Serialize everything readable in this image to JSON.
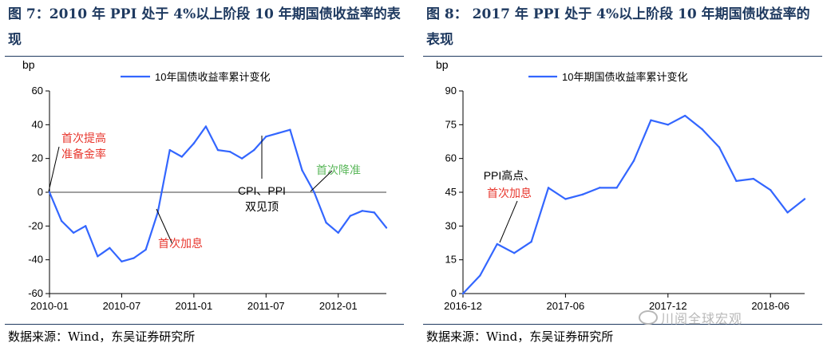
{
  "charts": [
    {
      "title": "图 7：2010 年 PPI 处于 4%以上阶段 10 年期国债收益率的表现",
      "source": "数据来源：Wind，东吴证券研究所"
    },
    {
      "title": "图 8：  2017 年 PPI 处于 4%以上阶段 10 年期国债收益率的表现",
      "source": "数据来源：Wind，东吴证券研究所"
    }
  ],
  "watermark": "川阅全球宏观",
  "chart_data": [
    {
      "type": "line",
      "title": "图 7：2010 年 PPI 处于 4%以上阶段 10 年期国债收益率的表现",
      "ylabel": "bp",
      "ylim": [
        -60,
        60
      ],
      "yticks": [
        -60,
        -40,
        -20,
        0,
        20,
        40,
        60
      ],
      "xtick_labels": [
        "2010-01",
        "2010-07",
        "2011-01",
        "2011-07",
        "2012-01"
      ],
      "xtick_index": [
        0,
        6,
        12,
        18,
        24
      ],
      "line_color": "#3366ff",
      "legend": "10年国债收益率累计变化",
      "series": [
        {
          "name": "10年国债收益率累计变化",
          "values": [
            0,
            -17,
            -24,
            -20,
            -38,
            -33,
            -41,
            -39,
            -34,
            -12,
            25,
            21,
            29,
            39,
            25,
            24,
            20,
            25,
            33,
            35,
            37,
            13,
            0,
            -18,
            -24,
            -14,
            -11,
            -12,
            -21
          ]
        }
      ],
      "annotations": [
        {
          "text": "首次提高\n准备金率",
          "color": "#e8382f",
          "index": 0
        },
        {
          "text": "首次加息",
          "color": "#e8382f",
          "index": 9
        },
        {
          "text": "CPI、PPI\n双见顶",
          "color": "#000000",
          "index": 18
        },
        {
          "text": "首次降准",
          "color": "#5cb85c",
          "index": 22
        }
      ]
    },
    {
      "type": "line",
      "title": "图 8：2017 年 PPI 处于 4%以上阶段 10 年期国债收益率的表现",
      "ylabel": "bp",
      "ylim": [
        0,
        90
      ],
      "yticks": [
        0,
        15,
        30,
        45,
        60,
        75,
        90
      ],
      "xtick_labels": [
        "2016-12",
        "2017-06",
        "2017-12",
        "2018-06"
      ],
      "xtick_index": [
        0,
        6,
        12,
        18
      ],
      "line_color": "#3366ff",
      "legend": "10年期国债收益率累计变化",
      "series": [
        {
          "name": "10年期国债收益率累计变化",
          "values": [
            0,
            8,
            22,
            18,
            23,
            47,
            42,
            44,
            47,
            47,
            59,
            77,
            75,
            79,
            73,
            65,
            50,
            51,
            46,
            36,
            42
          ]
        }
      ],
      "annotations": [
        {
          "text": "PPI高点、",
          "color": "#000000",
          "index": 2
        },
        {
          "text": "首次加息",
          "color": "#e8382f",
          "index": 2
        }
      ]
    }
  ]
}
